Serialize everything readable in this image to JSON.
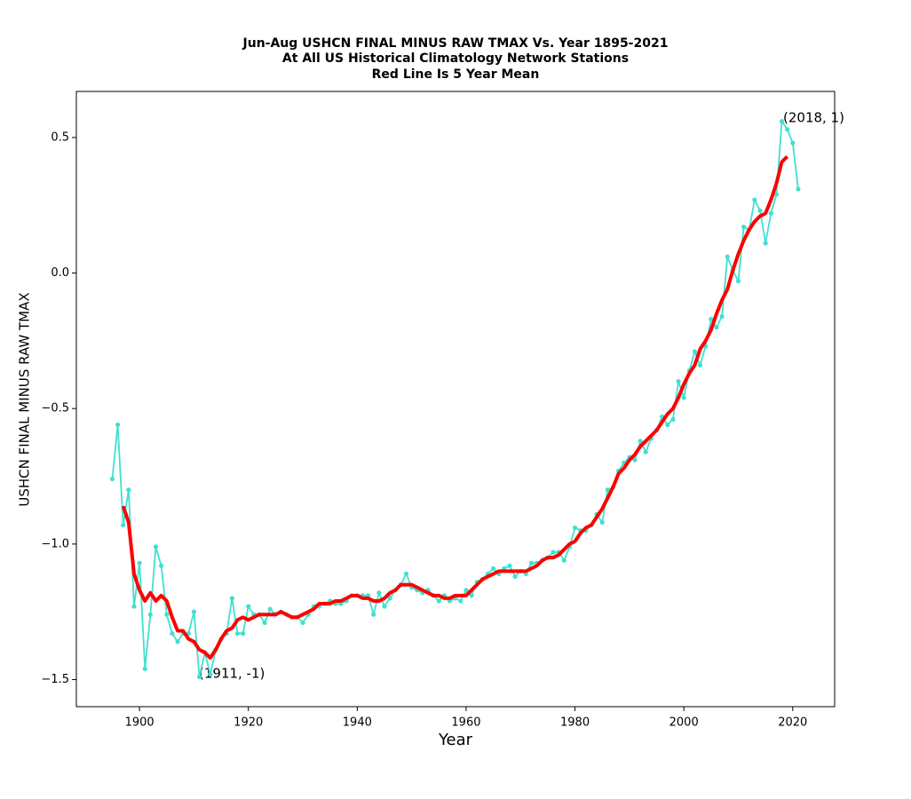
{
  "chart_data": {
    "type": "line",
    "title": [
      "Jun-Aug USHCN FINAL MINUS RAW TMAX Vs. Year 1895-2021",
      "At All US Historical Climatology Network Stations",
      "Red Line Is 5 Year Mean"
    ],
    "xlabel": "Year",
    "ylabel": "USHCN FINAL MINUS RAW TMAX",
    "x": [
      1895,
      1896,
      1897,
      1898,
      1899,
      1900,
      1901,
      1902,
      1903,
      1904,
      1905,
      1906,
      1907,
      1908,
      1909,
      1910,
      1911,
      1912,
      1913,
      1914,
      1915,
      1916,
      1917,
      1918,
      1919,
      1920,
      1921,
      1922,
      1923,
      1924,
      1925,
      1926,
      1927,
      1928,
      1929,
      1930,
      1931,
      1932,
      1933,
      1934,
      1935,
      1936,
      1937,
      1938,
      1939,
      1940,
      1941,
      1942,
      1943,
      1944,
      1945,
      1946,
      1947,
      1948,
      1949,
      1950,
      1951,
      1952,
      1953,
      1954,
      1955,
      1956,
      1957,
      1958,
      1959,
      1960,
      1961,
      1962,
      1963,
      1964,
      1965,
      1966,
      1967,
      1968,
      1969,
      1970,
      1971,
      1972,
      1973,
      1974,
      1975,
      1976,
      1977,
      1978,
      1979,
      1980,
      1981,
      1982,
      1983,
      1984,
      1985,
      1986,
      1987,
      1988,
      1989,
      1990,
      1991,
      1992,
      1993,
      1994,
      1995,
      1996,
      1997,
      1998,
      1999,
      2000,
      2001,
      2002,
      2003,
      2004,
      2005,
      2006,
      2007,
      2008,
      2009,
      2010,
      2011,
      2012,
      2013,
      2014,
      2015,
      2016,
      2017,
      2018,
      2019,
      2020,
      2021
    ],
    "series": [
      {
        "color": "#40e0d0",
        "markers": true,
        "values": [
          -0.76,
          -0.56,
          -0.93,
          -0.8,
          -1.23,
          -1.07,
          -1.46,
          -1.26,
          -1.01,
          -1.08,
          -1.26,
          -1.33,
          -1.36,
          -1.33,
          -1.33,
          -1.25,
          -1.49,
          -1.4,
          -1.48,
          -1.39,
          -1.35,
          -1.33,
          -1.2,
          -1.33,
          -1.33,
          -1.23,
          -1.26,
          -1.26,
          -1.29,
          -1.24,
          -1.26,
          -1.25,
          -1.26,
          -1.27,
          -1.27,
          -1.29,
          -1.26,
          -1.23,
          -1.23,
          -1.22,
          -1.21,
          -1.22,
          -1.22,
          -1.21,
          -1.19,
          -1.19,
          -1.19,
          -1.19,
          -1.26,
          -1.18,
          -1.23,
          -1.2,
          -1.17,
          -1.15,
          -1.11,
          -1.16,
          -1.17,
          -1.18,
          -1.17,
          -1.19,
          -1.21,
          -1.19,
          -1.21,
          -1.2,
          -1.21,
          -1.17,
          -1.19,
          -1.14,
          -1.13,
          -1.11,
          -1.09,
          -1.11,
          -1.09,
          -1.08,
          -1.12,
          -1.1,
          -1.11,
          -1.07,
          -1.07,
          -1.06,
          -1.05,
          -1.03,
          -1.03,
          -1.06,
          -1.01,
          -0.94,
          -0.95,
          -0.95,
          -0.93,
          -0.89,
          -0.92,
          -0.8,
          -0.79,
          -0.73,
          -0.7,
          -0.68,
          -0.69,
          -0.62,
          -0.66,
          -0.61,
          -0.58,
          -0.53,
          -0.56,
          -0.54,
          -0.4,
          -0.46,
          -0.36,
          -0.29,
          -0.34,
          -0.27,
          -0.17,
          -0.2,
          -0.16,
          0.06,
          0.01,
          -0.03,
          0.17,
          0.16,
          0.27,
          0.23,
          0.11,
          0.22,
          0.29,
          0.56,
          0.53,
          0.48,
          0.31
        ]
      },
      {
        "color": "#ff0000",
        "markers": false,
        "values": [
          null,
          null,
          -0.86,
          -0.92,
          -1.11,
          -1.17,
          -1.21,
          -1.18,
          -1.21,
          -1.19,
          -1.21,
          -1.27,
          -1.32,
          -1.32,
          -1.35,
          -1.36,
          -1.39,
          -1.4,
          -1.42,
          -1.39,
          -1.35,
          -1.32,
          -1.31,
          -1.28,
          -1.27,
          -1.28,
          -1.27,
          -1.26,
          -1.26,
          -1.26,
          -1.26,
          -1.25,
          -1.26,
          -1.27,
          -1.27,
          -1.26,
          -1.25,
          -1.24,
          -1.22,
          -1.22,
          -1.22,
          -1.21,
          -1.21,
          -1.2,
          -1.19,
          -1.19,
          -1.2,
          -1.2,
          -1.21,
          -1.21,
          -1.2,
          -1.18,
          -1.17,
          -1.15,
          -1.15,
          -1.15,
          -1.16,
          -1.17,
          -1.18,
          -1.19,
          -1.19,
          -1.2,
          -1.2,
          -1.19,
          -1.19,
          -1.19,
          -1.17,
          -1.15,
          -1.13,
          -1.12,
          -1.11,
          -1.1,
          -1.1,
          -1.1,
          -1.1,
          -1.1,
          -1.1,
          -1.09,
          -1.08,
          -1.06,
          -1.05,
          -1.05,
          -1.04,
          -1.02,
          -1.0,
          -0.99,
          -0.96,
          -0.94,
          -0.93,
          -0.9,
          -0.87,
          -0.83,
          -0.79,
          -0.74,
          -0.72,
          -0.69,
          -0.67,
          -0.64,
          -0.62,
          -0.6,
          -0.58,
          -0.55,
          -0.52,
          -0.5,
          -0.46,
          -0.41,
          -0.37,
          -0.34,
          -0.28,
          -0.25,
          -0.21,
          -0.15,
          -0.1,
          -0.06,
          0.01,
          0.07,
          0.12,
          0.16,
          0.19,
          0.21,
          0.22,
          0.27,
          0.33,
          0.41,
          0.43,
          null,
          null
        ]
      }
    ],
    "annotations": [
      "(1911, -1)",
      "(2018, 1)"
    ],
    "xlim": [
      1888.4,
      2027.7
    ],
    "ylim": [
      -1.6,
      0.67
    ],
    "xticks": [
      1900,
      1920,
      1940,
      1960,
      1980,
      2000,
      2020
    ],
    "yticks": [
      0.5,
      {
        "value": 0,
        "label": "0.0"
      },
      {
        "value": -0.5,
        "label": "−0.5"
      },
      {
        "value": -1.0,
        "label": "−1.0"
      },
      {
        "value": -1.5,
        "label": "−1.5"
      }
    ],
    "grid": false
  }
}
